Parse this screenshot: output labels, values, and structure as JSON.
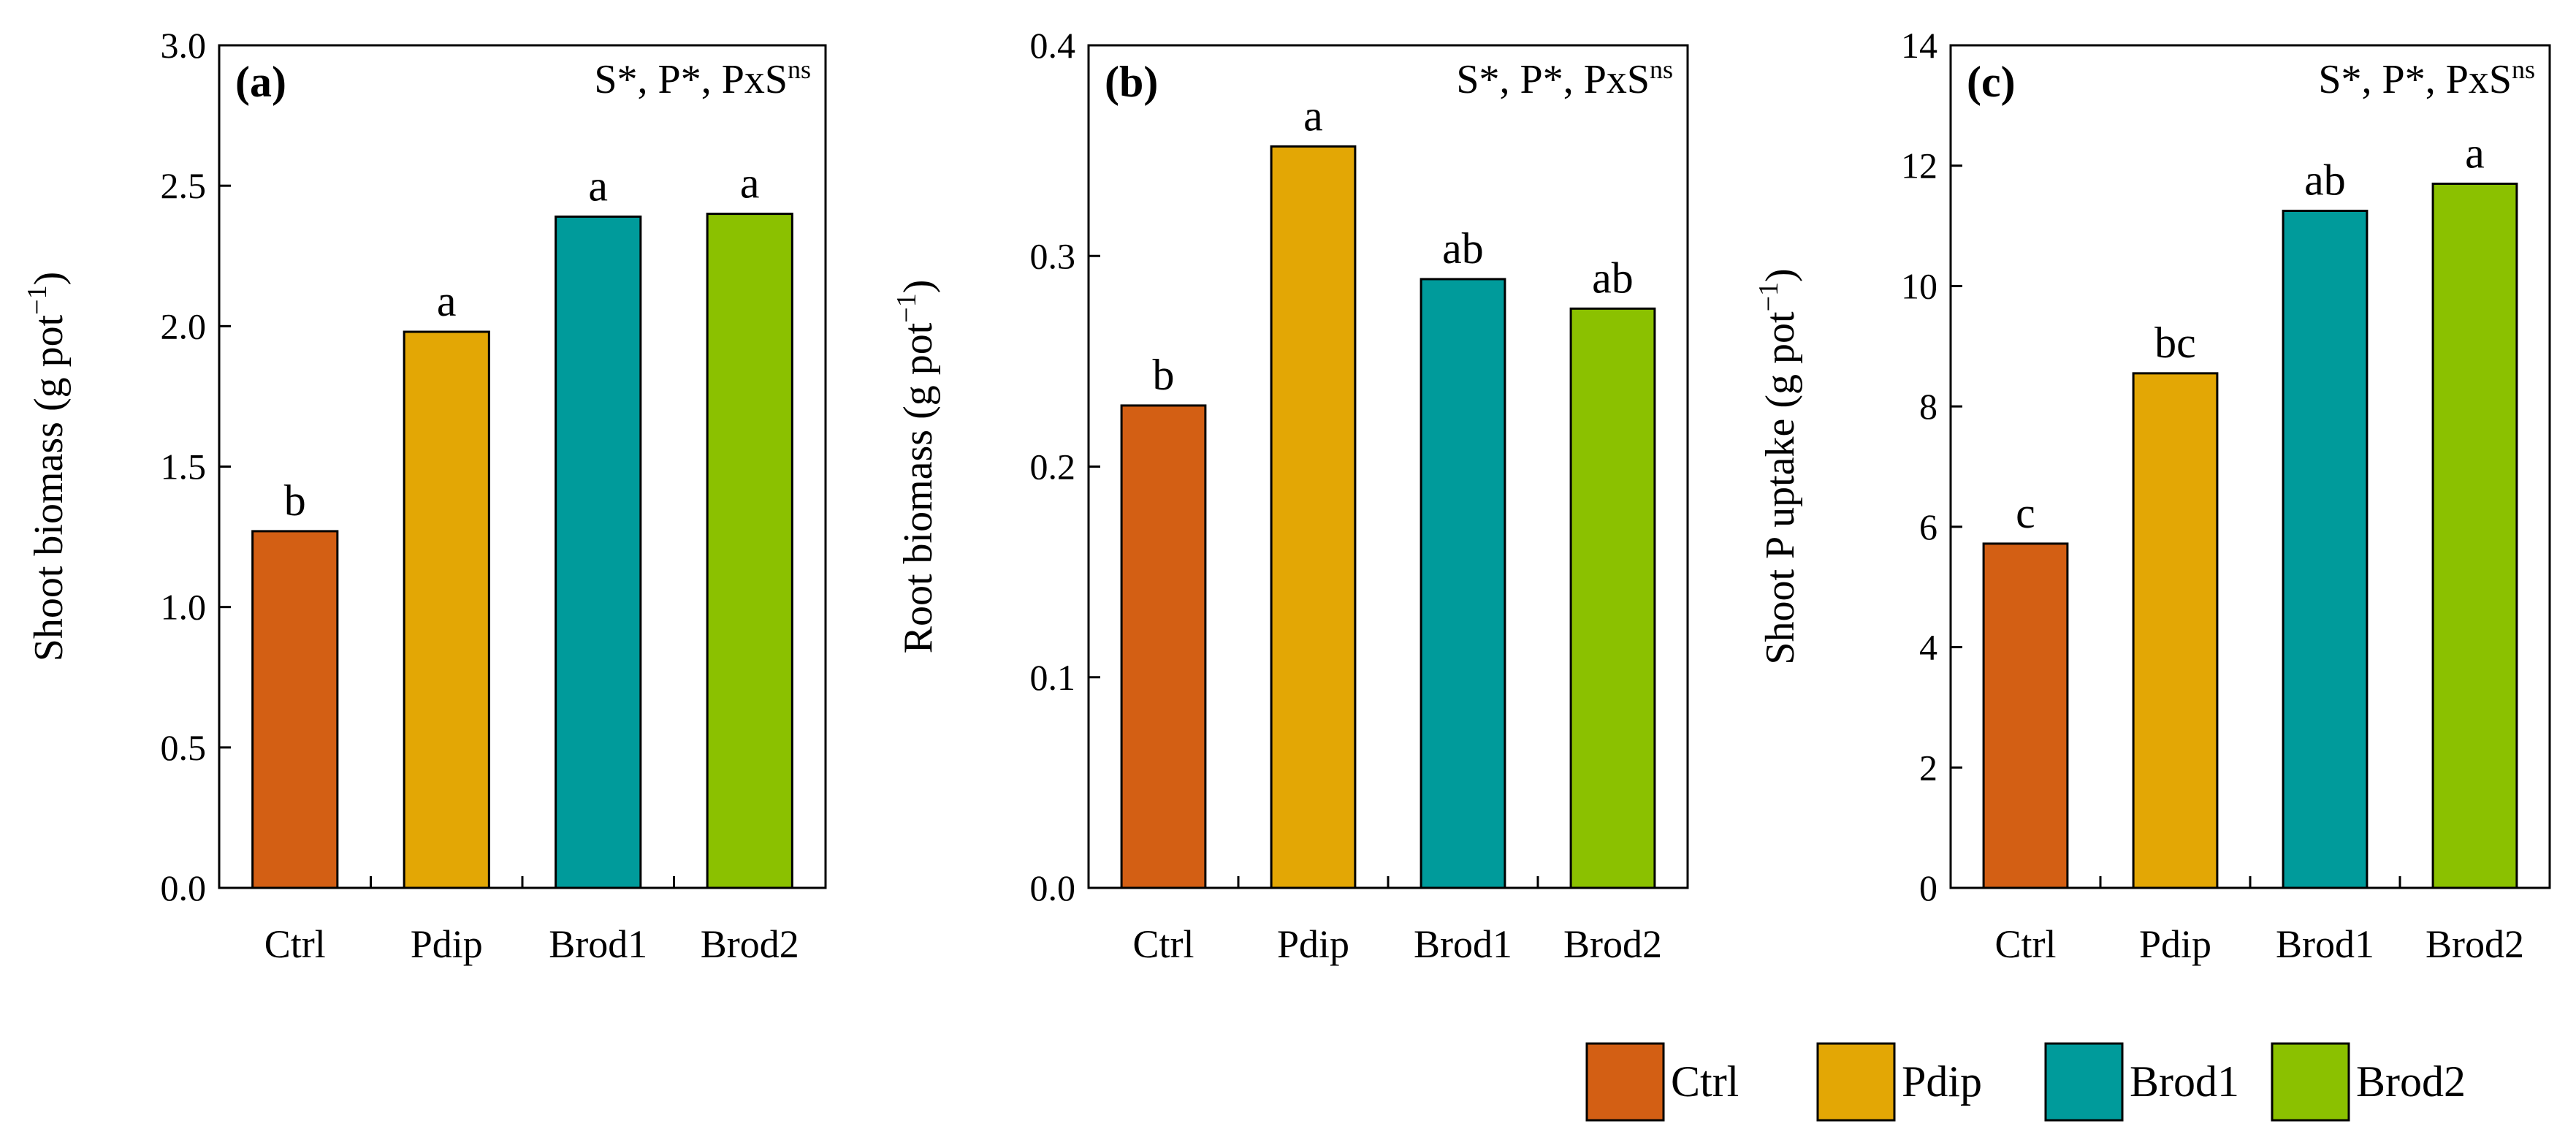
{
  "chart_data": [
    {
      "type": "bar",
      "panel_label": "(a)",
      "stats": {
        "text": "S*, P*, PxS",
        "sup": "ns"
      },
      "ylabel": {
        "text": "Shoot biomass (g pot",
        "sup": "−1",
        "close": ")"
      },
      "ylim": [
        0,
        3.0
      ],
      "yticks": [
        "0.0",
        "0.5",
        "1.0",
        "1.5",
        "2.0",
        "2.5",
        "3.0"
      ],
      "categories": [
        "Ctrl",
        "Pdip",
        "Brod1",
        "Brod2"
      ],
      "values": [
        1.27,
        1.98,
        2.39,
        2.4
      ],
      "letters": [
        "b",
        "a",
        "a",
        "a"
      ],
      "grid": false
    },
    {
      "type": "bar",
      "panel_label": "(b)",
      "stats": {
        "text": "S*, P*, PxS",
        "sup": "ns"
      },
      "ylabel": {
        "text": "Root biomass (g pot",
        "sup": "−1",
        "close": ")"
      },
      "ylim": [
        0,
        0.4
      ],
      "yticks": [
        "0.0",
        "0.1",
        "0.2",
        "0.3",
        "0.4"
      ],
      "categories": [
        "Ctrl",
        "Pdip",
        "Brod1",
        "Brod2"
      ],
      "values": [
        0.229,
        0.352,
        0.289,
        0.275
      ],
      "letters": [
        "b",
        "a",
        "ab",
        "ab"
      ],
      "grid": false
    },
    {
      "type": "bar",
      "panel_label": "(c)",
      "stats": {
        "text": "S*, P*, PxS",
        "sup": "ns"
      },
      "ylabel": {
        "text": "Shoot P uptake (g pot",
        "sup": "−1",
        "close": ")"
      },
      "ylim": [
        0,
        14
      ],
      "yticks": [
        "0",
        "2",
        "4",
        "6",
        "8",
        "10",
        "12",
        "14"
      ],
      "categories": [
        "Ctrl",
        "Pdip",
        "Brod1",
        "Brod2"
      ],
      "values": [
        5.72,
        8.55,
        11.25,
        11.7
      ],
      "letters": [
        "c",
        "bc",
        "ab",
        "a"
      ],
      "grid": false
    }
  ],
  "colors": {
    "Ctrl": "#D35F14",
    "Pdip": "#E3A705",
    "Brod1": "#009B9B",
    "Brod2": "#8BC100"
  },
  "legend": {
    "placement": "bottom-right",
    "entries": [
      "Ctrl",
      "Pdip",
      "Brod1",
      "Brod2"
    ]
  }
}
